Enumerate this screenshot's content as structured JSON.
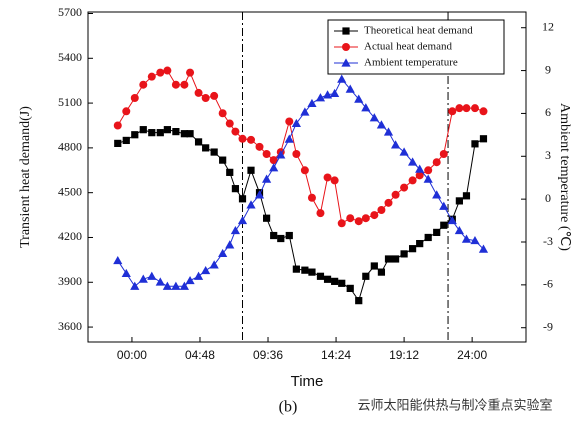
{
  "chart_data": {
    "type": "line",
    "xlabel": "Time",
    "ylabel": "Transient heat demand(J)",
    "y2label": "Ambient temperature (℃)",
    "caption": "(b)",
    "watermark": "云师太阳能供热与制冷重点实验室",
    "xlim": [
      -3.1,
      27.8
    ],
    "xticks": [
      {
        "value": 0,
        "label": "00:00"
      },
      {
        "value": 4.8,
        "label": "04:48"
      },
      {
        "value": 9.6,
        "label": "09:36"
      },
      {
        "value": 14.4,
        "label": "14:24"
      },
      {
        "value": 19.2,
        "label": "19:12"
      },
      {
        "value": 24,
        "label": "24:00"
      }
    ],
    "ylim": [
      3500,
      5710
    ],
    "yticks": [
      3600,
      3900,
      4200,
      4500,
      4800,
      5100,
      5400,
      5700
    ],
    "y2lim": [
      -10,
      13.1
    ],
    "y2ticks": [
      -9,
      -6,
      -3,
      0,
      3,
      6,
      9,
      12
    ],
    "reference_lines": [
      7.8,
      22.3
    ],
    "legend": "upper right",
    "x": [
      -1.0,
      -0.4,
      0.2,
      0.8,
      1.4,
      2.0,
      2.5,
      3.1,
      3.7,
      4.1,
      4.7,
      5.2,
      5.8,
      6.4,
      6.9,
      7.3,
      7.8,
      8.4,
      9.0,
      9.5,
      10.0,
      10.5,
      11.1,
      11.6,
      12.2,
      12.7,
      13.3,
      13.8,
      14.3,
      14.8,
      15.4,
      16.0,
      16.5,
      17.1,
      17.6,
      18.1,
      18.6,
      19.2,
      19.8,
      20.3,
      20.9,
      21.5,
      22.0,
      22.6,
      23.1,
      23.6,
      24.2,
      24.8
    ],
    "series": [
      {
        "name": "Theoretical heat demand",
        "color": "#000000",
        "marker": "square",
        "values": [
          4830,
          4850,
          4888,
          4922,
          4902,
          4902,
          4922,
          4909,
          4895,
          4895,
          4840,
          4800,
          4772,
          4718,
          4636,
          4527,
          4459,
          4650,
          4500,
          4329,
          4213,
          4193,
          4213,
          3988,
          3981,
          3968,
          3940,
          3920,
          3906,
          3893,
          3859,
          3777,
          3940,
          4009,
          3968,
          4056,
          4056,
          4090,
          4125,
          4159,
          4200,
          4234,
          4282,
          4322,
          4445,
          4479,
          4827,
          4861
        ]
      },
      {
        "name": "Actual heat demand",
        "color": "#e8141a",
        "marker": "circle",
        "values": [
          4950,
          5045,
          5134,
          5223,
          5277,
          5304,
          5318,
          5223,
          5223,
          5304,
          5168,
          5134,
          5148,
          5032,
          4963,
          4909,
          4861,
          4854,
          4807,
          4759,
          4718,
          4772,
          4977,
          4759,
          4650,
          4466,
          4363,
          4602,
          4582,
          4295,
          4329,
          4309,
          4329,
          4350,
          4384,
          4432,
          4486,
          4534,
          4582,
          4616,
          4650,
          4704,
          4759,
          5045,
          5066,
          5066,
          5066,
          5045
        ]
      },
      {
        "name": "Ambient temperature",
        "color": "#1f2fd6",
        "marker": "triangle",
        "axis": "y2",
        "values": [
          -4.3,
          -5.2,
          -6.1,
          -5.6,
          -5.4,
          -5.8,
          -6.1,
          -6.1,
          -6.1,
          -5.7,
          -5.4,
          -5.0,
          -4.6,
          -3.8,
          -3.2,
          -2.2,
          -1.5,
          -0.4,
          0.3,
          1.4,
          2.2,
          3.1,
          4.2,
          5.3,
          6.1,
          6.7,
          7.1,
          7.3,
          7.4,
          8.4,
          7.7,
          7.0,
          6.4,
          5.7,
          5.2,
          4.7,
          3.8,
          3.3,
          2.6,
          2.1,
          1.4,
          0.3,
          -0.5,
          -1.5,
          -2.2,
          -2.8,
          -2.9,
          -3.5
        ]
      }
    ]
  }
}
